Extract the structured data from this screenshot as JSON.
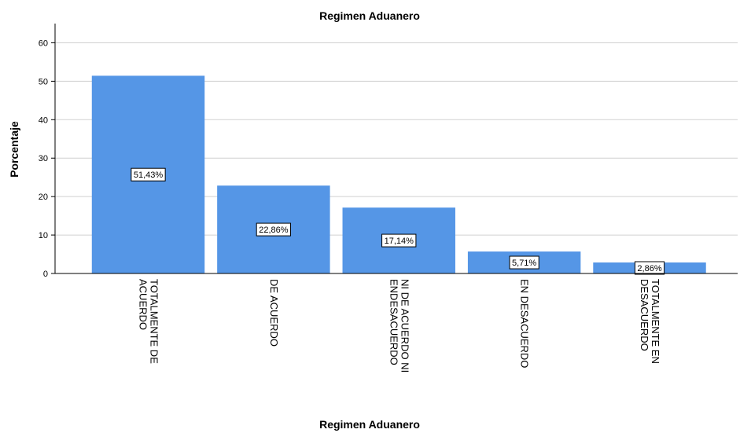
{
  "chart_data": {
    "type": "bar",
    "title": "Regimen Aduanero",
    "x_label": "Regimen Aduanero",
    "y_label": "Porcentaje",
    "categories": [
      "TOTALMENTE DE ACUERDO",
      "DE ACUERDO",
      "NI DE ACUERDO NI ENDESACUERDO",
      "EN DESACUERDO",
      "TOTALMENTE EN DESACUERDO"
    ],
    "values": [
      51.43,
      22.86,
      17.14,
      5.71,
      2.86
    ],
    "value_labels": [
      "51,43%",
      "22,86%",
      "17,14%",
      "5,71%",
      "2,86%"
    ],
    "color": "#5596e6",
    "ylim": [
      0,
      65
    ],
    "yticks": [
      0,
      10,
      20,
      30,
      40,
      50,
      60
    ],
    "grid": true
  }
}
